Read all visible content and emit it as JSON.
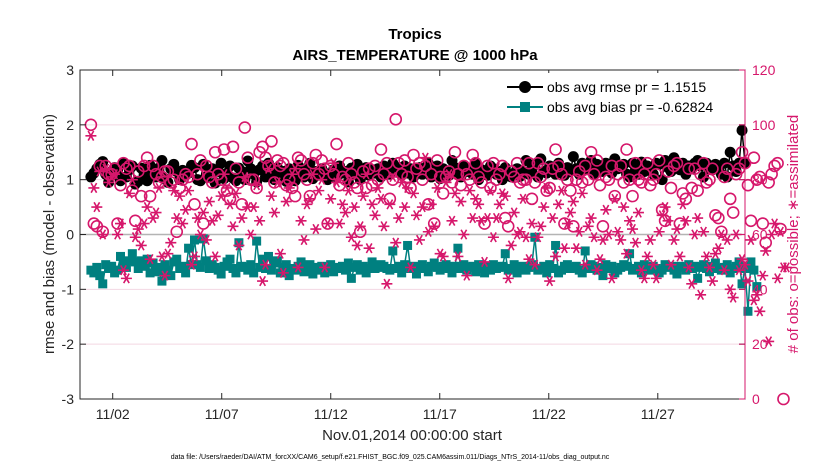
{
  "chart_data": {
    "type": "line",
    "title": "Tropics",
    "subtitle": "AIRS_TEMPERATURE @ 1000 hPa",
    "xlabel": "Nov.01,2014 00:00:00 start",
    "ylabel": "rmse and bias (model - observation)",
    "y2label": "# of obs: o=possible; ∗=assimilated",
    "footer": "data file: /Users/raeder/DAI/ATM_forcXX/CAM6_setup/f.e21.FHIST_BGC.f09_025.CAM6assim.011/Diags_NTrS_2014-11/obs_diag_output.nc",
    "xlim": [
      0.5,
      31.0
    ],
    "ylim": [
      -3,
      3
    ],
    "y2lim": [
      0,
      120
    ],
    "xticks": [
      2,
      7,
      12,
      17,
      22,
      27
    ],
    "xtick_labels": [
      "11/02",
      "11/07",
      "11/12",
      "11/17",
      "11/22",
      "11/27"
    ],
    "yticks": [
      -3,
      -2,
      -1,
      0,
      1,
      2,
      3
    ],
    "ytick_labels": [
      "-3",
      "-2",
      "-1",
      "0",
      "1",
      "2",
      "3"
    ],
    "y2ticks": [
      0,
      20,
      40,
      60,
      80,
      100,
      120
    ],
    "y2tick_labels": [
      "0",
      "20",
      "40",
      "60",
      "80",
      "100",
      "120"
    ],
    "legend_position": "top-right",
    "colors": {
      "rmse": "#000000",
      "bias": "#008080",
      "obs": "#d6176b",
      "zero_line": "#b4b4b4",
      "grid": "#f3d7e2"
    },
    "series": [
      {
        "name": "obs avg rmse pr = 1.1515",
        "marker": "circle",
        "color": "#000000",
        "values": [
          1.05,
          1.12,
          1.2,
          1.28,
          1.33,
          1.1,
          0.95,
          1.15,
          1.22,
          1.08,
          0.98,
          1.3,
          1.05,
          1.18,
          1.25,
          0.92,
          0.97,
          1.21,
          1.1,
          0.98,
          1.26,
          1.14,
          1.05,
          1.21,
          1.35,
          1.02,
          0.95,
          1.2,
          1.28,
          1.15,
          1.0,
          1.17,
          1.08,
          1.12,
          1.26,
          1.22,
          1.0,
          0.98,
          1.28,
          1.05,
          1.12,
          1.2,
          0.94,
          1.15,
          1.3,
          1.02,
          1.12,
          1.25,
          1.03,
          0.98,
          1.21,
          1.15,
          1.0,
          1.34,
          1.2,
          1.1,
          0.96,
          1.18,
          1.25,
          1.05,
          1.3,
          1.12,
          1.0,
          1.22,
          1.08,
          1.15,
          0.97,
          1.2,
          1.1,
          0.98,
          1.26,
          1.14,
          1.05,
          1.21,
          1.3,
          1.02,
          1.15,
          1.08,
          1.2,
          1.12,
          1.0,
          1.1,
          1.18,
          1.05,
          1.25,
          1.12,
          1.15,
          0.96,
          1.21,
          1.1,
          1.28,
          1.0,
          1.15,
          1.22,
          1.08,
          1.18,
          1.12,
          1.2,
          1.05,
          1.25,
          1.15,
          1.1,
          1.3,
          1.18,
          1.22,
          1.08,
          1.25,
          1.12,
          1.2,
          1.05,
          1.15,
          1.22,
          1.1,
          1.18,
          1.3,
          1.05,
          1.12,
          1.25,
          1.02,
          1.2,
          1.15,
          1.08,
          1.35,
          1.22,
          1.1,
          1.05,
          1.25,
          1.15,
          1.2,
          1.1,
          1.3,
          1.0,
          1.18,
          1.12,
          1.08,
          1.25,
          1.2,
          1.1,
          1.15,
          1.0,
          1.22,
          1.1,
          1.05,
          1.12,
          1.2,
          1.06,
          1.15,
          1.35,
          1.1,
          1.2,
          1.28,
          1.05,
          1.38,
          1.15,
          1.12,
          1.25,
          1.2,
          1.1,
          1.3,
          1.18,
          1.08,
          1.22,
          1.15,
          1.42,
          1.2,
          1.1,
          1.3,
          1.25,
          1.18,
          1.35,
          1.1,
          1.28,
          1.2,
          1.15,
          1.3,
          1.25,
          1.12,
          1.38,
          1.2,
          1.22,
          1.28,
          1.1,
          1.05,
          1.3,
          1.18,
          1.1,
          1.32,
          1.15,
          1.25,
          1.2,
          1.1,
          1.3,
          1.28,
          1.0,
          1.35,
          1.22,
          1.15,
          1.4,
          1.25,
          1.18,
          1.3,
          1.1,
          1.25,
          1.2,
          1.3,
          1.35,
          1.25,
          1.05,
          1.3,
          1.2,
          1.18,
          1.28,
          1.2,
          1.1,
          1.3,
          1.05,
          1.5,
          1.25,
          1.15,
          1.3,
          1.9,
          1.3
        ]
      },
      {
        "name": "obs avg bias pr = -0.62824",
        "marker": "square",
        "color": "#008080",
        "values": [
          -0.65,
          -0.7,
          -0.6,
          -0.75,
          -0.9,
          -0.55,
          -0.62,
          -0.58,
          -0.7,
          -0.65,
          -0.4,
          -0.55,
          -0.6,
          -0.48,
          -0.35,
          -0.5,
          -0.62,
          -0.48,
          -0.58,
          -0.45,
          -0.7,
          -0.52,
          -0.6,
          -0.68,
          -0.85,
          -0.55,
          -0.65,
          -0.75,
          -0.5,
          -0.45,
          -0.62,
          -0.58,
          -0.7,
          -0.25,
          -0.55,
          -0.1,
          -0.55,
          -0.6,
          -0.08,
          -0.48,
          -0.62,
          -0.55,
          -0.6,
          -0.65,
          -0.72,
          -0.58,
          -0.5,
          -0.45,
          -0.62,
          -0.7,
          -0.15,
          -0.58,
          -0.6,
          -0.65,
          -0.55,
          -0.7,
          -0.12,
          -0.6,
          -0.45,
          -0.62,
          -0.4,
          -0.65,
          -0.52,
          -0.48,
          -0.7,
          -0.6,
          -0.55,
          -0.75,
          -0.62,
          -0.65,
          -0.58,
          -0.5,
          -0.68,
          -0.62,
          -0.55,
          -0.72,
          -0.6,
          -0.65,
          -0.58,
          -0.7,
          -0.62,
          -0.55,
          -0.68,
          -0.62,
          -0.6,
          -0.58,
          -0.65,
          -0.52,
          -0.8,
          -0.6,
          -0.55,
          -0.65,
          -0.58,
          -0.7,
          -0.62,
          -0.5,
          -0.62,
          -0.6,
          -0.55,
          -0.58,
          -0.62,
          -0.65,
          -0.3,
          -0.62,
          -0.58,
          -0.7,
          -0.55,
          -0.2,
          -0.62,
          -0.58,
          -0.72,
          -0.6,
          -0.55,
          -0.62,
          -0.68,
          -0.58,
          -0.52,
          -0.6,
          -0.65,
          -0.58,
          -0.55,
          -0.62,
          -0.7,
          -0.58,
          -0.25,
          -0.62,
          -0.55,
          -0.65,
          -0.6,
          -0.58,
          -0.68,
          -0.55,
          -0.62,
          -0.7,
          -0.58,
          -0.65,
          -0.55,
          -0.62,
          -0.6,
          -0.58,
          -0.35,
          -0.65,
          -0.62,
          -0.55,
          -0.7,
          -0.6,
          -0.58,
          -0.65,
          -0.6,
          -0.55,
          -0.05,
          -0.65,
          -0.62,
          -0.58,
          -0.7,
          -0.55,
          -0.62,
          -0.2,
          -0.7,
          -0.65,
          -0.58,
          -0.55,
          -0.62,
          -0.6,
          -0.58,
          -0.65,
          -0.7,
          -0.3,
          -0.62,
          -0.55,
          -0.58,
          -0.65,
          -0.6,
          -0.75,
          -0.55,
          -0.62,
          -0.58,
          -0.7,
          -0.65,
          -0.6,
          -0.55,
          -0.58,
          -0.35,
          -0.65,
          -0.62,
          -0.58,
          -0.7,
          -0.55,
          -0.6,
          -0.65,
          -0.58,
          -0.62,
          -0.7,
          -0.65,
          -0.55,
          -0.6,
          -0.58,
          -0.65,
          -0.72,
          -0.58,
          -0.6,
          -0.65,
          -0.55,
          -0.62,
          -0.58,
          -0.8,
          -0.6,
          -0.55,
          -0.62,
          -0.68,
          -0.58,
          -0.52,
          -0.62,
          -0.65,
          -0.6,
          -0.55,
          -0.7,
          -0.62,
          -0.58,
          -0.5,
          -0.9,
          -0.62,
          -1.4,
          -0.5,
          -0.65,
          -0.95
        ]
      },
      {
        "name": "obs possible",
        "marker": "open-circle",
        "axis": "right",
        "color": "#d6176b",
        "values": [
          100,
          64,
          63,
          85,
          61,
          85,
          82,
          82,
          84,
          64,
          78,
          86,
          84,
          85,
          76,
          65,
          83,
          74,
          85,
          88,
          74,
          85,
          82,
          79,
          81,
          83,
          83,
          79,
          80,
          61,
          77,
          80,
          82,
          81,
          93,
          71,
          82,
          87,
          64,
          85,
          81,
          79,
          90,
          82,
          80,
          91,
          76,
          73,
          92,
          84,
          79,
          71,
          99,
          88,
          80,
          80,
          77,
          90,
          92,
          88,
          85,
          94,
          79,
          87,
          85,
          86,
          78,
          80,
          77,
          74,
          88,
          87,
          82,
          80,
          74,
          86,
          89,
          82,
          87,
          84,
          64,
          85,
          82,
          93,
          78,
          81,
          80,
          86,
          82,
          79,
          77,
          61,
          83,
          77,
          84,
          78,
          85,
          80,
          91,
          82,
          86,
          73,
          80,
          102,
          86,
          82,
          87,
          81,
          77,
          89,
          84,
          86,
          80,
          85,
          71,
          82,
          64,
          87,
          81,
          75,
          81,
          83,
          79,
          90,
          82,
          78,
          85,
          82,
          80,
          89,
          86,
          81,
          79,
          64,
          85,
          77,
          86,
          80,
          82,
          85,
          66,
          63,
          83,
          81,
          86,
          79,
          80,
          80,
          86,
          73,
          79,
          86,
          81,
          84,
          76,
          77,
          84,
          91,
          85,
          82,
          64,
          80,
          76,
          63,
          80,
          83,
          79,
          85,
          80,
          90,
          82,
          87,
          78,
          63,
          81,
          80,
          85,
          74,
          82,
          85,
          79,
          91,
          80,
          74,
          86,
          80,
          79,
          82,
          86,
          78,
          80,
          82,
          87,
          69,
          65,
          83,
          77,
          85,
          86,
          64,
          75,
          73,
          84,
          77,
          84,
          76,
          82,
          86,
          79,
          80,
          84,
          67,
          66,
          61,
          81,
          84,
          73,
          68,
          82,
          84,
          90,
          86,
          78,
          65,
          88,
          80,
          81,
          64,
          57,
          79,
          82,
          85,
          86,
          62,
          0
        ]
      },
      {
        "name": "obs assimilated",
        "marker": "asterisk",
        "axis": "right",
        "color": "#d6176b",
        "values": [
          96,
          77,
          70,
          83,
          60,
          84,
          79,
          81,
          82,
          60,
          64,
          47,
          44,
          75,
          80,
          59,
          62,
          56,
          64,
          70,
          51,
          66,
          68,
          77,
          52,
          45,
          53,
          57,
          76,
          66,
          74,
          64,
          69,
          76,
          49,
          52,
          66,
          60,
          68,
          58,
          72,
          65,
          52,
          67,
          74,
          82,
          77,
          71,
          63,
          75,
          56,
          66,
          81,
          70,
          60,
          70,
          78,
          65,
          43,
          49,
          84,
          74,
          68,
          79,
          53,
          46,
          72,
          77,
          82,
          84,
          48,
          65,
          58,
          71,
          73,
          82,
          62,
          76,
          80,
          48,
          64,
          73,
          86,
          79,
          64,
          71,
          68,
          76,
          59,
          70,
          56,
          63,
          74,
          82,
          55,
          71,
          67,
          77,
          73,
          63,
          42,
          71,
          81,
          57,
          66,
          79,
          70,
          77,
          48,
          75,
          67,
          58,
          70,
          88,
          61,
          71,
          63,
          77,
          53,
          52,
          79,
          82,
          65,
          75,
          52,
          72,
          60,
          45,
          76,
          66,
          73,
          71,
          65,
          50,
          66,
          76,
          59,
          66,
          71,
          75,
          74,
          44,
          56,
          68,
          60,
          61,
          73,
          59,
          51,
          64,
          49,
          59,
          63,
          70,
          77,
          43,
          66,
          52,
          71,
          76,
          55,
          64,
          68,
          72,
          55,
          61,
          75,
          49,
          63,
          66,
          59,
          47,
          51,
          58,
          69,
          60,
          44,
          73,
          61,
          58,
          70,
          53,
          65,
          62,
          57,
          68,
          47,
          44,
          52,
          58,
          49,
          44,
          61,
          67,
          70,
          65,
          49,
          58,
          62,
          52,
          71,
          65,
          48,
          42,
          60,
          66,
          38,
          61,
          52,
          48,
          43,
          53,
          55,
          60,
          47,
          58,
          40,
          37,
          60,
          47,
          51,
          49,
          43,
          58,
          36,
          38,
          32,
          45,
          54,
          21,
          60,
          64,
          44,
          61,
          48,
          48
        ]
      }
    ]
  }
}
